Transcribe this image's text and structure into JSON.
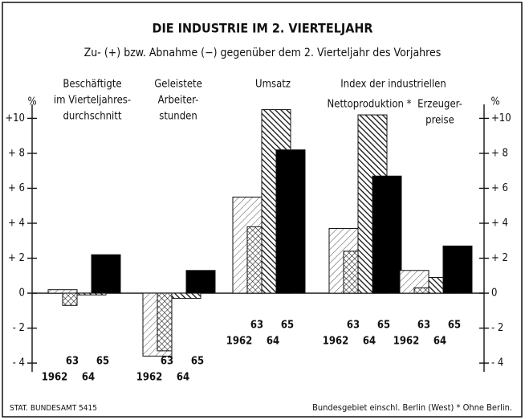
{
  "chart_data": {
    "type": "bar",
    "title": "DIE INDUSTRIE IM 2. VIERTELJAHR",
    "subtitle": "Zu- (+) bzw. Abnahme (−) gegenüber dem 2. Vierteljahr des Vorjahres",
    "categories": [
      [
        "Beschäftigte",
        "im Vierteljahres-",
        "durchschnitt"
      ],
      [
        "Geleistete",
        "Arbeiter-",
        "stunden"
      ],
      [
        "Umsatz"
      ],
      [
        "Nettoproduktion *"
      ],
      [
        "Erzeuger-",
        "preise"
      ]
    ],
    "group_header": "Index der industriellen",
    "y_unit": "%",
    "series": [
      {
        "name": "1962",
        "pattern": "light-hatch",
        "values": [
          0.2,
          -3.6,
          5.5,
          3.7,
          1.3
        ]
      },
      {
        "name": "63",
        "pattern": "cross-hatch",
        "values": [
          -0.7,
          -3.3,
          3.8,
          2.4,
          0.3
        ]
      },
      {
        "name": "64",
        "pattern": "dark-hatch",
        "values": [
          -0.1,
          -0.3,
          10.5,
          10.2,
          0.9
        ]
      },
      {
        "name": "65",
        "pattern": "solid",
        "values": [
          2.2,
          1.3,
          8.2,
          6.7,
          2.7
        ]
      }
    ],
    "ylim": [
      -4.5,
      10.8
    ],
    "yticks": [
      {
        "value": -4,
        "label": "- 4"
      },
      {
        "value": -2,
        "label": "- 2"
      },
      0,
      {
        "value": 2,
        "label": "+ 2"
      },
      {
        "value": 4,
        "label": "+ 4"
      },
      {
        "value": 6,
        "label": "+ 6"
      },
      {
        "value": 8,
        "label": "+ 8"
      },
      {
        "value": 10,
        "label": "+10"
      }
    ],
    "source": "STAT. BUNDESAMT 5415",
    "note": "Bundesgebiet einschl. Berlin (West)   * Ohne Berlin."
  }
}
